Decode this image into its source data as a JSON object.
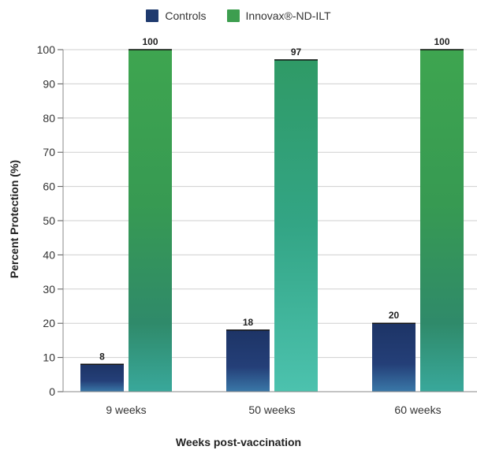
{
  "colors": {
    "controls": "#1f3a6e",
    "innovax": "#3d9e4f",
    "grid": "#cfcfcf"
  },
  "chart_data": {
    "type": "bar",
    "categories": [
      "9 weeks",
      "50 weeks",
      "60 weeks"
    ],
    "series": [
      {
        "name": "Controls",
        "values": [
          8,
          18,
          20
        ]
      },
      {
        "name": "Innovax®-ND-ILT",
        "values": [
          100,
          97,
          100
        ]
      }
    ],
    "data_labels": [
      [
        "8",
        "18",
        "20"
      ],
      [
        "100",
        "97",
        "100"
      ]
    ],
    "xlabel": "Weeks post-vaccination",
    "ylabel": "Percent Protection (%)",
    "ylim": [
      0,
      100
    ],
    "yticks": [
      0,
      10,
      20,
      30,
      40,
      50,
      60,
      70,
      80,
      90,
      100
    ],
    "grid": true,
    "legend_position": "top-center"
  }
}
